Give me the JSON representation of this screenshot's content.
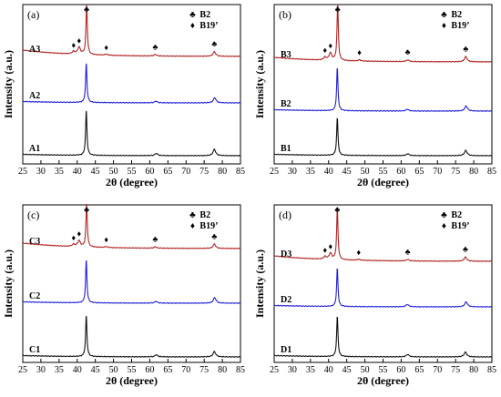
{
  "chart_data": [
    {
      "panel": "(a)",
      "type": "line",
      "xlabel": "2θ (degree)",
      "ylabel": "Intensity (a.u.)",
      "xlim": [
        25,
        85
      ],
      "xticks": [
        25,
        30,
        35,
        40,
        45,
        50,
        55,
        60,
        65,
        70,
        75,
        80,
        85
      ],
      "legend": [
        {
          "symbol": "♣",
          "label": "B2"
        },
        {
          "symbol": "♦",
          "label": "B19’"
        }
      ],
      "series": [
        {
          "name": "A3",
          "color": "#b22222",
          "peaks": [
            {
              "x": 39.0,
              "h": 0.05
            },
            {
              "x": 40.5,
              "h": 0.14
            },
            {
              "x": 42.6,
              "h": 1.0
            },
            {
              "x": 48.0,
              "h": 0.02
            },
            {
              "x": 61.5,
              "h": 0.03
            },
            {
              "x": 77.8,
              "h": 0.09
            }
          ]
        },
        {
          "name": "A2",
          "color": "#1f1fd6",
          "peaks": [
            {
              "x": 42.5,
              "h": 1.0
            },
            {
              "x": 61.7,
              "h": 0.04
            },
            {
              "x": 77.9,
              "h": 0.13
            }
          ]
        },
        {
          "name": "A1",
          "color": "#111111",
          "peaks": [
            {
              "x": 42.5,
              "h": 1.0
            },
            {
              "x": 61.8,
              "h": 0.05
            },
            {
              "x": 77.8,
              "h": 0.14
            }
          ]
        }
      ],
      "markers": [
        {
          "symbol": "♣",
          "x": 42.6
        },
        {
          "symbol": "♦",
          "x": 39.0
        },
        {
          "symbol": "♦",
          "x": 40.5
        },
        {
          "symbol": "♦",
          "x": 48.0
        },
        {
          "symbol": "♣",
          "x": 61.5
        },
        {
          "symbol": "♣",
          "x": 77.8
        }
      ]
    },
    {
      "panel": "(b)",
      "type": "line",
      "xlabel": "2θ (degree)",
      "ylabel": "Intensity (a.u.)",
      "xlim": [
        25,
        85
      ],
      "xticks": [
        25,
        30,
        35,
        40,
        45,
        50,
        55,
        60,
        65,
        70,
        75,
        80,
        85
      ],
      "legend": [
        {
          "symbol": "♣",
          "label": "B2"
        },
        {
          "symbol": "♦",
          "label": "B19’"
        }
      ],
      "series": [
        {
          "name": "B3",
          "color": "#b22222",
          "peaks": [
            {
              "x": 39.0,
              "h": 0.05
            },
            {
              "x": 40.5,
              "h": 0.13
            },
            {
              "x": 42.5,
              "h": 1.0
            },
            {
              "x": 48.5,
              "h": 0.02
            },
            {
              "x": 61.8,
              "h": 0.03
            },
            {
              "x": 77.8,
              "h": 0.09
            }
          ]
        },
        {
          "name": "B2",
          "color": "#1f1fd6",
          "peaks": [
            {
              "x": 42.4,
              "h": 1.0
            },
            {
              "x": 61.7,
              "h": 0.04
            },
            {
              "x": 77.9,
              "h": 0.12
            }
          ]
        },
        {
          "name": "B1",
          "color": "#111111",
          "peaks": [
            {
              "x": 42.4,
              "h": 1.0
            },
            {
              "x": 61.8,
              "h": 0.05
            },
            {
              "x": 77.8,
              "h": 0.14
            }
          ]
        }
      ],
      "markers": [
        {
          "symbol": "♣",
          "x": 42.5
        },
        {
          "symbol": "♦",
          "x": 39.0
        },
        {
          "symbol": "♦",
          "x": 40.5
        },
        {
          "symbol": "♦",
          "x": 48.5
        },
        {
          "symbol": "♣",
          "x": 61.8
        },
        {
          "symbol": "♣",
          "x": 77.8
        }
      ]
    },
    {
      "panel": "(c)",
      "type": "line",
      "xlabel": "2θ (degree)",
      "ylabel": "Intensity (a.u.)",
      "xlim": [
        25,
        85
      ],
      "xticks": [
        25,
        30,
        35,
        40,
        45,
        50,
        55,
        60,
        65,
        70,
        75,
        80,
        85
      ],
      "legend": [
        {
          "symbol": "♣",
          "label": "B2"
        },
        {
          "symbol": "♦",
          "label": "B19’"
        }
      ],
      "series": [
        {
          "name": "C3",
          "color": "#b22222",
          "peaks": [
            {
              "x": 39.0,
              "h": 0.05
            },
            {
              "x": 40.5,
              "h": 0.14
            },
            {
              "x": 42.6,
              "h": 1.0
            },
            {
              "x": 48.0,
              "h": 0.02
            },
            {
              "x": 61.5,
              "h": 0.03
            },
            {
              "x": 77.8,
              "h": 0.1
            }
          ]
        },
        {
          "name": "C2",
          "color": "#1f1fd6",
          "peaks": [
            {
              "x": 42.5,
              "h": 1.0
            },
            {
              "x": 61.7,
              "h": 0.04
            },
            {
              "x": 77.9,
              "h": 0.13
            }
          ]
        },
        {
          "name": "C1",
          "color": "#111111",
          "peaks": [
            {
              "x": 42.5,
              "h": 1.0
            },
            {
              "x": 61.8,
              "h": 0.05
            },
            {
              "x": 77.8,
              "h": 0.13
            }
          ]
        }
      ],
      "markers": [
        {
          "symbol": "♣",
          "x": 42.6
        },
        {
          "symbol": "♦",
          "x": 39.0
        },
        {
          "symbol": "♦",
          "x": 40.5
        },
        {
          "symbol": "♦",
          "x": 48.0
        },
        {
          "symbol": "♣",
          "x": 61.5
        },
        {
          "symbol": "♣",
          "x": 77.8
        }
      ]
    },
    {
      "panel": "(d)",
      "type": "line",
      "xlabel": "2θ (degree)",
      "ylabel": "Intensity (a.u.)",
      "xlim": [
        25,
        85
      ],
      "xticks": [
        25,
        30,
        35,
        40,
        45,
        50,
        55,
        60,
        65,
        70,
        75,
        80,
        85
      ],
      "legend": [
        {
          "symbol": "♣",
          "label": "B2"
        },
        {
          "symbol": "♦",
          "label": "B19’"
        }
      ],
      "series": [
        {
          "name": "D3",
          "color": "#b22222",
          "peaks": [
            {
              "x": 39.0,
              "h": 0.05
            },
            {
              "x": 40.5,
              "h": 0.12
            },
            {
              "x": 42.4,
              "h": 1.0
            },
            {
              "x": 48.3,
              "h": 0.02
            },
            {
              "x": 61.8,
              "h": 0.03
            },
            {
              "x": 77.7,
              "h": 0.08
            }
          ]
        },
        {
          "name": "D2",
          "color": "#1f1fd6",
          "peaks": [
            {
              "x": 42.4,
              "h": 1.0
            },
            {
              "x": 61.7,
              "h": 0.06
            },
            {
              "x": 77.9,
              "h": 0.13
            }
          ]
        },
        {
          "name": "D1",
          "color": "#111111",
          "peaks": [
            {
              "x": 42.4,
              "h": 1.0
            },
            {
              "x": 61.8,
              "h": 0.06
            },
            {
              "x": 77.7,
              "h": 0.12
            }
          ]
        }
      ],
      "markers": [
        {
          "symbol": "♣",
          "x": 42.4
        },
        {
          "symbol": "♦",
          "x": 39.0
        },
        {
          "symbol": "♦",
          "x": 40.5
        },
        {
          "symbol": "♦",
          "x": 48.3
        },
        {
          "symbol": "♣",
          "x": 61.8
        },
        {
          "symbol": "♣",
          "x": 77.7
        }
      ]
    }
  ]
}
